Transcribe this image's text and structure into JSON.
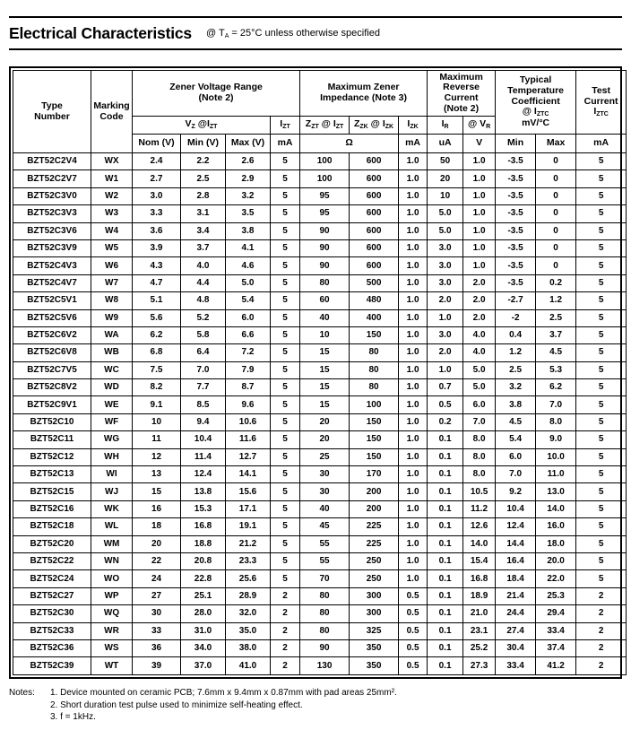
{
  "page": {
    "title": "Electrical Characteristics",
    "condition": [
      {
        "t": "@ T"
      },
      {
        "s": "A"
      },
      {
        "t": " = 25°C unless otherwise specified"
      }
    ],
    "colors": {
      "text": "#000000",
      "background": "#ffffff",
      "border": "#000000"
    }
  },
  "table": {
    "group_headers": {
      "type_number": "Type\nNumber",
      "marking_code": "Marking\nCode",
      "zener_voltage_range": "Zener Voltage Range\n(Note 2)",
      "max_zener_impedance": "Maximum Zener\nImpedance (Note 3)",
      "max_reverse_current": "Maximum\nReverse\nCurrent\n(Note 2)",
      "typical_temp_coefficient": [
        {
          "t": "Typical\nTemperature\nCoefficient\n@ I"
        },
        {
          "s": "ZTC"
        },
        {
          "t": "\nmV/°C"
        }
      ],
      "test_current": [
        {
          "t": "Test\nCurrent\nI"
        },
        {
          "s": "ZTC"
        }
      ]
    },
    "sub_headers": {
      "vz_at_izt": [
        {
          "t": "V"
        },
        {
          "s": "Z"
        },
        {
          "t": " @I"
        },
        {
          "s": "ZT"
        }
      ],
      "izt": [
        {
          "t": "I"
        },
        {
          "s": "ZT"
        }
      ],
      "zzt_at_izt": [
        {
          "t": "Z"
        },
        {
          "s": "ZT"
        },
        {
          "t": " @ I"
        },
        {
          "s": "ZT"
        }
      ],
      "zzk_at_izk": [
        {
          "t": "Z"
        },
        {
          "s": "ZK"
        },
        {
          "t": " @ I"
        },
        {
          "s": "ZK"
        }
      ],
      "izk": [
        {
          "t": "I"
        },
        {
          "s": "ZK"
        }
      ],
      "ir": [
        {
          "t": "I"
        },
        {
          "s": "R"
        }
      ],
      "at_vr": [
        {
          "t": "@ V"
        },
        {
          "s": "R"
        }
      ]
    },
    "unit_headers": {
      "nom_v": "Nom (V)",
      "min_v": "Min (V)",
      "max_v": "Max (V)",
      "izt_ma": "mA",
      "ohms": "Ω",
      "izk_ma": "mA",
      "ir_ua": "uA",
      "vr_v": "V",
      "tc_min": "Min",
      "tc_max": "Max",
      "iztc_ma": "mA"
    },
    "col_keys": [
      "type_number",
      "marking_code",
      "nom_v",
      "min_v",
      "max_v",
      "izt_ma",
      "zzt",
      "zzk",
      "izk_ma",
      "ir_ua",
      "vr_v",
      "tc_min",
      "tc_max",
      "iztc_ma"
    ],
    "rows": [
      [
        "BZT52C2V4",
        "WX",
        "2.4",
        "2.2",
        "2.6",
        "5",
        "100",
        "600",
        "1.0",
        "50",
        "1.0",
        "-3.5",
        "0",
        "5"
      ],
      [
        "BZT52C2V7",
        "W1",
        "2.7",
        "2.5",
        "2.9",
        "5",
        "100",
        "600",
        "1.0",
        "20",
        "1.0",
        "-3.5",
        "0",
        "5"
      ],
      [
        "BZT52C3V0",
        "W2",
        "3.0",
        "2.8",
        "3.2",
        "5",
        "95",
        "600",
        "1.0",
        "10",
        "1.0",
        "-3.5",
        "0",
        "5"
      ],
      [
        "BZT52C3V3",
        "W3",
        "3.3",
        "3.1",
        "3.5",
        "5",
        "95",
        "600",
        "1.0",
        "5.0",
        "1.0",
        "-3.5",
        "0",
        "5"
      ],
      [
        "BZT52C3V6",
        "W4",
        "3.6",
        "3.4",
        "3.8",
        "5",
        "90",
        "600",
        "1.0",
        "5.0",
        "1.0",
        "-3.5",
        "0",
        "5"
      ],
      [
        "BZT52C3V9",
        "W5",
        "3.9",
        "3.7",
        "4.1",
        "5",
        "90",
        "600",
        "1.0",
        "3.0",
        "1.0",
        "-3.5",
        "0",
        "5"
      ],
      [
        "BZT52C4V3",
        "W6",
        "4.3",
        "4.0",
        "4.6",
        "5",
        "90",
        "600",
        "1.0",
        "3.0",
        "1.0",
        "-3.5",
        "0",
        "5"
      ],
      [
        "BZT52C4V7",
        "W7",
        "4.7",
        "4.4",
        "5.0",
        "5",
        "80",
        "500",
        "1.0",
        "3.0",
        "2.0",
        "-3.5",
        "0.2",
        "5"
      ],
      [
        "BZT52C5V1",
        "W8",
        "5.1",
        "4.8",
        "5.4",
        "5",
        "60",
        "480",
        "1.0",
        "2.0",
        "2.0",
        "-2.7",
        "1.2",
        "5"
      ],
      [
        "BZT52C5V6",
        "W9",
        "5.6",
        "5.2",
        "6.0",
        "5",
        "40",
        "400",
        "1.0",
        "1.0",
        "2.0",
        "-2",
        "2.5",
        "5"
      ],
      [
        "BZT52C6V2",
        "WA",
        "6.2",
        "5.8",
        "6.6",
        "5",
        "10",
        "150",
        "1.0",
        "3.0",
        "4.0",
        "0.4",
        "3.7",
        "5"
      ],
      [
        "BZT52C6V8",
        "WB",
        "6.8",
        "6.4",
        "7.2",
        "5",
        "15",
        "80",
        "1.0",
        "2.0",
        "4.0",
        "1.2",
        "4.5",
        "5"
      ],
      [
        "BZT52C7V5",
        "WC",
        "7.5",
        "7.0",
        "7.9",
        "5",
        "15",
        "80",
        "1.0",
        "1.0",
        "5.0",
        "2.5",
        "5.3",
        "5"
      ],
      [
        "BZT52C8V2",
        "WD",
        "8.2",
        "7.7",
        "8.7",
        "5",
        "15",
        "80",
        "1.0",
        "0.7",
        "5.0",
        "3.2",
        "6.2",
        "5"
      ],
      [
        "BZT52C9V1",
        "WE",
        "9.1",
        "8.5",
        "9.6",
        "5",
        "15",
        "100",
        "1.0",
        "0.5",
        "6.0",
        "3.8",
        "7.0",
        "5"
      ],
      [
        "BZT52C10",
        "WF",
        "10",
        "9.4",
        "10.6",
        "5",
        "20",
        "150",
        "1.0",
        "0.2",
        "7.0",
        "4.5",
        "8.0",
        "5"
      ],
      [
        "BZT52C11",
        "WG",
        "11",
        "10.4",
        "11.6",
        "5",
        "20",
        "150",
        "1.0",
        "0.1",
        "8.0",
        "5.4",
        "9.0",
        "5"
      ],
      [
        "BZT52C12",
        "WH",
        "12",
        "11.4",
        "12.7",
        "5",
        "25",
        "150",
        "1.0",
        "0.1",
        "8.0",
        "6.0",
        "10.0",
        "5"
      ],
      [
        "BZT52C13",
        "WI",
        "13",
        "12.4",
        "14.1",
        "5",
        "30",
        "170",
        "1.0",
        "0.1",
        "8.0",
        "7.0",
        "11.0",
        "5"
      ],
      [
        "BZT52C15",
        "WJ",
        "15",
        "13.8",
        "15.6",
        "5",
        "30",
        "200",
        "1.0",
        "0.1",
        "10.5",
        "9.2",
        "13.0",
        "5"
      ],
      [
        "BZT52C16",
        "WK",
        "16",
        "15.3",
        "17.1",
        "5",
        "40",
        "200",
        "1.0",
        "0.1",
        "11.2",
        "10.4",
        "14.0",
        "5"
      ],
      [
        "BZT52C18",
        "WL",
        "18",
        "16.8",
        "19.1",
        "5",
        "45",
        "225",
        "1.0",
        "0.1",
        "12.6",
        "12.4",
        "16.0",
        "5"
      ],
      [
        "BZT52C20",
        "WM",
        "20",
        "18.8",
        "21.2",
        "5",
        "55",
        "225",
        "1.0",
        "0.1",
        "14.0",
        "14.4",
        "18.0",
        "5"
      ],
      [
        "BZT52C22",
        "WN",
        "22",
        "20.8",
        "23.3",
        "5",
        "55",
        "250",
        "1.0",
        "0.1",
        "15.4",
        "16.4",
        "20.0",
        "5"
      ],
      [
        "BZT52C24",
        "WO",
        "24",
        "22.8",
        "25.6",
        "5",
        "70",
        "250",
        "1.0",
        "0.1",
        "16.8",
        "18.4",
        "22.0",
        "5"
      ],
      [
        "BZT52C27",
        "WP",
        "27",
        "25.1",
        "28.9",
        "2",
        "80",
        "300",
        "0.5",
        "0.1",
        "18.9",
        "21.4",
        "25.3",
        "2"
      ],
      [
        "BZT52C30",
        "WQ",
        "30",
        "28.0",
        "32.0",
        "2",
        "80",
        "300",
        "0.5",
        "0.1",
        "21.0",
        "24.4",
        "29.4",
        "2"
      ],
      [
        "BZT52C33",
        "WR",
        "33",
        "31.0",
        "35.0",
        "2",
        "80",
        "325",
        "0.5",
        "0.1",
        "23.1",
        "27.4",
        "33.4",
        "2"
      ],
      [
        "BZT52C36",
        "WS",
        "36",
        "34.0",
        "38.0",
        "2",
        "90",
        "350",
        "0.5",
        "0.1",
        "25.2",
        "30.4",
        "37.4",
        "2"
      ],
      [
        "BZT52C39",
        "WT",
        "39",
        "37.0",
        "41.0",
        "2",
        "130",
        "350",
        "0.5",
        "0.1",
        "27.3",
        "33.4",
        "41.2",
        "2"
      ]
    ]
  },
  "notes": {
    "label": "Notes:",
    "items": [
      "1. Device mounted on ceramic PCB; 7.6mm x 9.4mm x 0.87mm with pad areas 25mm².",
      "2. Short duration test pulse used to minimize self-heating effect.",
      "3. f = 1kHz."
    ]
  }
}
